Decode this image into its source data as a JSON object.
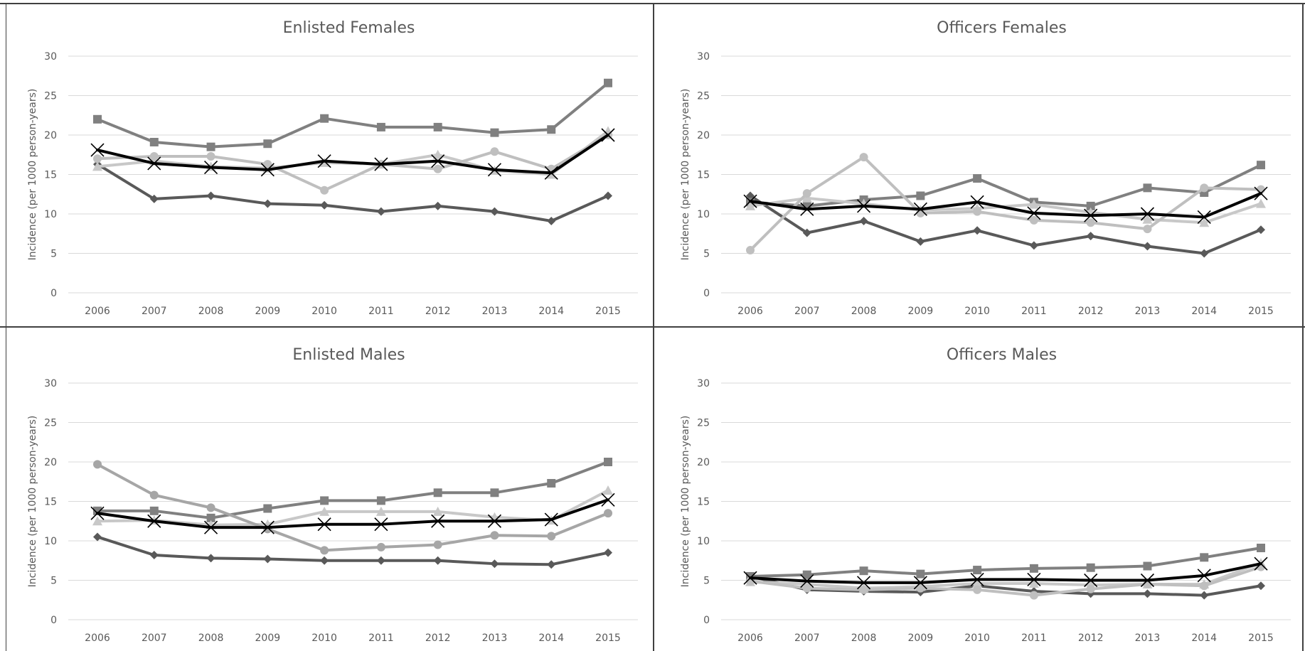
{
  "chart_data": [
    {
      "type": "line",
      "title": "Enlisted Females",
      "ylabel": "Incidence (per 1000 person-years)",
      "xlabel": "",
      "ylim": [
        0,
        30
      ],
      "yticks": [
        "0",
        "5",
        "10",
        "15",
        "20",
        "25",
        "30"
      ],
      "categories": [
        "2006",
        "2007",
        "2008",
        "2009",
        "2010",
        "2011",
        "2012",
        "2013",
        "2014",
        "2015"
      ],
      "grid": true,
      "series": [
        {
          "marker": "diamond",
          "color": "#595959",
          "values": [
            16.3,
            11.9,
            12.3,
            11.3,
            11.1,
            10.3,
            11.0,
            10.3,
            9.1,
            12.3
          ]
        },
        {
          "marker": "square",
          "color": "#808080",
          "values": [
            22.0,
            19.1,
            18.5,
            18.9,
            22.1,
            21.0,
            21.0,
            20.3,
            20.7,
            26.6
          ]
        },
        {
          "marker": "triangle",
          "color": "#c8c8c8",
          "values": [
            16.0,
            16.7,
            16.0,
            15.8,
            16.5,
            16.3,
            17.5,
            15.5,
            15.0,
            20.5
          ]
        },
        {
          "marker": "circle",
          "color": "#bfbfbf",
          "values": [
            17.0,
            17.3,
            17.3,
            16.3,
            13.0,
            16.3,
            15.7,
            17.9,
            15.7,
            20.0
          ]
        },
        {
          "marker": "x",
          "color": "#000000",
          "values": [
            18.1,
            16.4,
            15.9,
            15.6,
            16.7,
            16.3,
            16.7,
            15.6,
            15.2,
            20.0
          ]
        }
      ]
    },
    {
      "type": "line",
      "title": "Officers Females",
      "ylabel": "Incidence (per 1000 person-years)",
      "xlabel": "",
      "ylim": [
        0,
        30
      ],
      "yticks": [
        "0",
        "5",
        "10",
        "15",
        "20",
        "25",
        "30"
      ],
      "categories": [
        "2006",
        "2007",
        "2008",
        "2009",
        "2010",
        "2011",
        "2012",
        "2013",
        "2014",
        "2015"
      ],
      "grid": true,
      "series": [
        {
          "marker": "diamond",
          "color": "#595959",
          "values": [
            12.3,
            7.6,
            9.1,
            6.5,
            7.9,
            6.0,
            7.2,
            5.9,
            5.0,
            8.0
          ]
        },
        {
          "marker": "square",
          "color": "#808080",
          "values": [
            11.5,
            11.0,
            11.8,
            12.3,
            14.5,
            11.5,
            11.0,
            13.3,
            12.7,
            16.2
          ]
        },
        {
          "marker": "triangle",
          "color": "#c8c8c8",
          "values": [
            11.0,
            12.0,
            11.3,
            10.5,
            10.7,
            11.2,
            10.2,
            9.3,
            8.9,
            11.3
          ]
        },
        {
          "marker": "circle",
          "color": "#bfbfbf",
          "values": [
            5.4,
            12.6,
            17.2,
            10.1,
            10.3,
            9.2,
            8.9,
            8.1,
            13.3,
            13.1
          ]
        },
        {
          "marker": "x",
          "color": "#000000",
          "values": [
            11.6,
            10.6,
            11.0,
            10.6,
            11.5,
            10.1,
            9.8,
            10.0,
            9.6,
            12.6
          ]
        }
      ]
    },
    {
      "type": "line",
      "title": "Enlisted Males",
      "ylabel": "Incidence (per 1000 person-years)",
      "xlabel": "",
      "ylim": [
        0,
        30
      ],
      "yticks": [
        "0",
        "5",
        "10",
        "15",
        "20",
        "25",
        "30"
      ],
      "categories": [
        "2006",
        "2007",
        "2008",
        "2009",
        "2010",
        "2011",
        "2012",
        "2013",
        "2014",
        "2015"
      ],
      "grid": true,
      "series": [
        {
          "marker": "diamond",
          "color": "#595959",
          "values": [
            10.5,
            8.2,
            7.8,
            7.7,
            7.5,
            7.5,
            7.5,
            7.1,
            7.0,
            8.5
          ]
        },
        {
          "marker": "square",
          "color": "#808080",
          "values": [
            13.8,
            13.8,
            12.9,
            14.1,
            15.1,
            15.1,
            16.1,
            16.1,
            17.3,
            20.0
          ]
        },
        {
          "marker": "triangle",
          "color": "#c8c8c8",
          "values": [
            12.5,
            12.6,
            12.0,
            12.1,
            13.7,
            13.7,
            13.7,
            13.0,
            12.6,
            16.4
          ]
        },
        {
          "marker": "circle",
          "color": "#a6a6a6",
          "values": [
            19.7,
            15.8,
            14.2,
            11.5,
            8.8,
            9.2,
            9.5,
            10.7,
            10.6,
            13.5
          ]
        },
        {
          "marker": "x",
          "color": "#000000",
          "values": [
            13.5,
            12.5,
            11.7,
            11.7,
            12.1,
            12.1,
            12.5,
            12.5,
            12.7,
            15.2
          ]
        }
      ]
    },
    {
      "type": "line",
      "title": "Officers Males",
      "ylabel": "Incidence (per 1000 person-years)",
      "xlabel": "",
      "ylim": [
        0,
        30
      ],
      "yticks": [
        "0",
        "5",
        "10",
        "15",
        "20",
        "25",
        "30"
      ],
      "categories": [
        "2006",
        "2007",
        "2008",
        "2009",
        "2010",
        "2011",
        "2012",
        "2013",
        "2014",
        "2015"
      ],
      "grid": true,
      "series": [
        {
          "marker": "diamond",
          "color": "#595959",
          "values": [
            5.5,
            3.8,
            3.6,
            3.5,
            4.3,
            3.6,
            3.3,
            3.3,
            3.1,
            4.3
          ]
        },
        {
          "marker": "square",
          "color": "#808080",
          "values": [
            5.5,
            5.7,
            6.2,
            5.8,
            6.3,
            6.5,
            6.6,
            6.8,
            7.9,
            9.1
          ]
        },
        {
          "marker": "triangle",
          "color": "#c8c8c8",
          "values": [
            4.8,
            4.5,
            4.0,
            4.2,
            4.6,
            4.6,
            4.4,
            4.5,
            4.5,
            7.2
          ]
        },
        {
          "marker": "circle",
          "color": "#bfbfbf",
          "values": [
            4.9,
            4.0,
            3.8,
            4.0,
            3.8,
            3.1,
            3.9,
            4.5,
            4.3,
            6.7
          ]
        },
        {
          "marker": "x",
          "color": "#000000",
          "values": [
            5.3,
            4.9,
            4.7,
            4.7,
            5.1,
            5.1,
            5.0,
            5.0,
            5.6,
            7.1
          ]
        }
      ]
    }
  ]
}
